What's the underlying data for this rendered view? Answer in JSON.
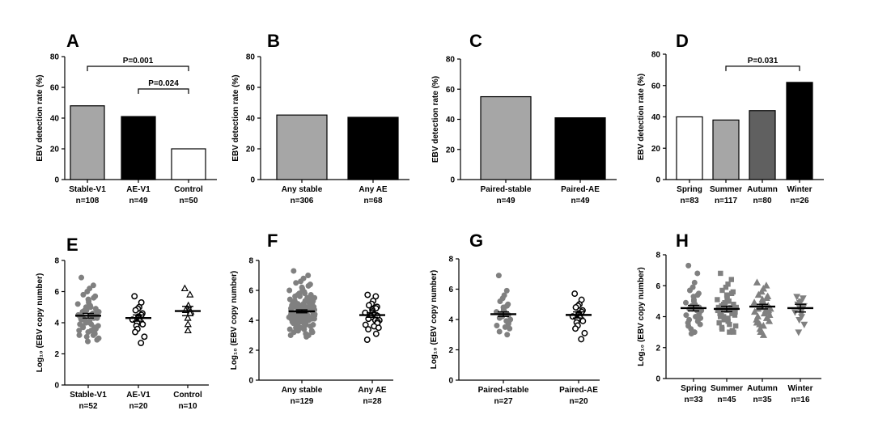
{
  "chart_data": [
    {
      "id": "A",
      "type": "bar",
      "panel_label": "A",
      "ylabel": "EBV detection rate (%)",
      "ylim": [
        0,
        80
      ],
      "yticks": [
        0,
        20,
        40,
        60,
        80
      ],
      "categories": [
        "Stable-V1",
        "AE-V1",
        "Control"
      ],
      "n_labels": [
        "n=108",
        "n=49",
        "n=50"
      ],
      "values": [
        48,
        41,
        20
      ],
      "colors": [
        "#a6a6a6",
        "#000000",
        "#ffffff"
      ],
      "comparisons": [
        {
          "from": 0,
          "to": 2,
          "label": "P=0.001"
        },
        {
          "from": 1,
          "to": 2,
          "label": "P=0.024"
        }
      ]
    },
    {
      "id": "B",
      "type": "bar",
      "panel_label": "B",
      "ylabel": "EBV detection rate (%)",
      "ylim": [
        0,
        80
      ],
      "yticks": [
        0,
        20,
        40,
        60,
        80
      ],
      "categories": [
        "Any stable",
        "Any AE"
      ],
      "n_labels": [
        "n=306",
        "n=68"
      ],
      "values": [
        42,
        40.5
      ],
      "colors": [
        "#a6a6a6",
        "#000000"
      ],
      "comparisons": []
    },
    {
      "id": "C",
      "type": "bar",
      "panel_label": "C",
      "ylabel": "EBV detection rate (%)",
      "ylim": [
        0,
        80
      ],
      "yticks": [
        0,
        20,
        40,
        60,
        80
      ],
      "categories": [
        "Paired-stable",
        "Paired-AE"
      ],
      "n_labels": [
        "n=49",
        "n=49"
      ],
      "values": [
        55,
        41
      ],
      "colors": [
        "#a6a6a6",
        "#000000"
      ],
      "comparisons": []
    },
    {
      "id": "D",
      "type": "bar",
      "panel_label": "D",
      "ylabel": "EBV detection rate (%)",
      "ylim": [
        0,
        80
      ],
      "yticks": [
        0,
        20,
        40,
        60,
        80
      ],
      "categories": [
        "Spring",
        "Summer",
        "Autumn",
        "Winter"
      ],
      "n_labels": [
        "n=83",
        "n=117",
        "n=80",
        "n=26"
      ],
      "values": [
        40,
        38,
        44,
        62
      ],
      "colors": [
        "#ffffff",
        "#a6a6a6",
        "#606060",
        "#000000"
      ],
      "comparisons": [
        {
          "from": 1,
          "to": 3,
          "label": "P=0.031"
        }
      ]
    },
    {
      "id": "E",
      "type": "scatter",
      "panel_label": "E",
      "ylabel": "Log₁₀ (EBV copy number)",
      "ylim": [
        0,
        8
      ],
      "yticks": [
        0,
        2,
        4,
        6,
        8
      ],
      "categories": [
        "Stable-V1",
        "AE-V1",
        "Control"
      ],
      "n_labels": [
        "n=52",
        "n=20",
        "n=10"
      ],
      "markers": [
        "circle-filled",
        "circle-open",
        "triangle-open"
      ],
      "marker_colors": [
        "#808080",
        "#000000",
        "#000000"
      ],
      "means": [
        4.45,
        4.3,
        4.75
      ],
      "sems": [
        0.15,
        0.2,
        0.3
      ],
      "points": [
        [
          6.9,
          6.4,
          6.2,
          6.0,
          5.8,
          5.7,
          5.6,
          5.5,
          5.4,
          5.3,
          5.2,
          5.1,
          5.0,
          5.0,
          4.9,
          4.8,
          4.8,
          4.7,
          4.7,
          4.6,
          4.6,
          4.5,
          4.5,
          4.5,
          4.4,
          4.4,
          4.3,
          4.3,
          4.3,
          4.2,
          4.2,
          4.1,
          4.1,
          4.0,
          4.0,
          3.9,
          3.9,
          3.8,
          3.8,
          3.7,
          3.7,
          3.6,
          3.5,
          3.5,
          3.4,
          3.3,
          3.2,
          3.2,
          3.1,
          3.0,
          2.9,
          2.8
        ],
        [
          5.7,
          5.3,
          5.0,
          4.9,
          4.8,
          4.6,
          4.5,
          4.4,
          4.4,
          4.3,
          4.2,
          4.2,
          4.1,
          4.0,
          3.9,
          3.8,
          3.6,
          3.4,
          3.1,
          2.7
        ],
        [
          6.2,
          5.8,
          5.1,
          4.9,
          4.8,
          4.7,
          4.6,
          4.3,
          3.9,
          3.5
        ]
      ]
    },
    {
      "id": "F",
      "type": "scatter",
      "panel_label": "F",
      "ylabel": "Log₁₀ (EBV copy number)",
      "ylim": [
        0,
        8
      ],
      "yticks": [
        0,
        2,
        4,
        6,
        8
      ],
      "categories": [
        "Any stable",
        "Any AE"
      ],
      "n_labels": [
        "n=129",
        "n=28"
      ],
      "markers": [
        "circle-filled",
        "circle-open"
      ],
      "marker_colors": [
        "#808080",
        "#000000"
      ],
      "means": [
        4.6,
        4.35
      ],
      "sems": [
        0.1,
        0.15
      ],
      "points": [
        [
          7.3,
          7.0,
          6.8,
          6.6,
          6.5,
          6.4,
          6.3,
          6.2,
          6.1,
          6.0,
          6.0,
          5.9,
          5.8,
          5.8,
          5.7,
          5.7,
          5.6,
          5.6,
          5.5,
          5.5,
          5.5,
          5.4,
          5.4,
          5.3,
          5.3,
          5.3,
          5.2,
          5.2,
          5.2,
          5.1,
          5.1,
          5.1,
          5.0,
          5.0,
          5.0,
          5.0,
          4.9,
          4.9,
          4.9,
          4.9,
          4.8,
          4.8,
          4.8,
          4.8,
          4.8,
          4.7,
          4.7,
          4.7,
          4.7,
          4.7,
          4.6,
          4.6,
          4.6,
          4.6,
          4.6,
          4.6,
          4.5,
          4.5,
          4.5,
          4.5,
          4.5,
          4.5,
          4.4,
          4.4,
          4.4,
          4.4,
          4.4,
          4.3,
          4.3,
          4.3,
          4.3,
          4.3,
          4.2,
          4.2,
          4.2,
          4.2,
          4.2,
          4.1,
          4.1,
          4.1,
          4.1,
          4.0,
          4.0,
          4.0,
          4.0,
          3.9,
          3.9,
          3.9,
          3.9,
          3.8,
          3.8,
          3.8,
          3.7,
          3.7,
          3.7,
          3.6,
          3.6,
          3.6,
          3.5,
          3.5,
          3.4,
          3.4,
          3.3,
          3.3,
          3.2,
          3.2,
          3.1,
          3.0,
          3.0,
          2.9,
          4.6,
          4.5,
          4.7,
          4.4,
          4.8,
          4.3,
          4.9,
          4.2,
          5.0,
          4.1,
          4.6,
          4.5,
          4.4,
          4.7,
          4.3,
          4.8,
          4.2,
          4.6,
          4.5
        ],
        [
          5.7,
          5.6,
          5.3,
          5.1,
          5.0,
          4.9,
          4.8,
          4.7,
          4.6,
          4.5,
          4.5,
          4.4,
          4.4,
          4.3,
          4.3,
          4.2,
          4.2,
          4.1,
          4.0,
          4.0,
          3.9,
          3.8,
          3.7,
          3.6,
          3.5,
          3.4,
          3.1,
          2.7
        ]
      ]
    },
    {
      "id": "G",
      "type": "scatter",
      "panel_label": "G",
      "ylabel": "Log₁₀ (EBV copy number)",
      "ylim": [
        0,
        8
      ],
      "yticks": [
        0,
        2,
        4,
        6,
        8
      ],
      "categories": [
        "Paired-stable",
        "Paired-AE"
      ],
      "n_labels": [
        "n=27",
        "n=20"
      ],
      "markers": [
        "circle-filled",
        "circle-open"
      ],
      "marker_colors": [
        "#808080",
        "#000000"
      ],
      "means": [
        4.35,
        4.3
      ],
      "sems": [
        0.15,
        0.2
      ],
      "points": [
        [
          6.9,
          5.9,
          5.6,
          5.4,
          5.2,
          5.0,
          4.9,
          4.8,
          4.7,
          4.6,
          4.5,
          4.5,
          4.4,
          4.4,
          4.3,
          4.3,
          4.2,
          4.1,
          4.0,
          3.9,
          3.8,
          3.7,
          3.6,
          3.5,
          3.4,
          3.2,
          3.0
        ],
        [
          5.7,
          5.3,
          5.0,
          4.9,
          4.8,
          4.6,
          4.5,
          4.4,
          4.4,
          4.3,
          4.2,
          4.2,
          4.1,
          4.0,
          3.9,
          3.8,
          3.6,
          3.4,
          3.1,
          2.7
        ]
      ]
    },
    {
      "id": "H",
      "type": "scatter",
      "panel_label": "H",
      "ylabel": "Log₁₀ (EBV copy number)",
      "ylim": [
        0,
        8
      ],
      "yticks": [
        0,
        2,
        4,
        6,
        8
      ],
      "categories": [
        "Spring",
        "Summer",
        "Autumn",
        "Winter"
      ],
      "n_labels": [
        "n=33",
        "n=45",
        "n=35",
        "n=16"
      ],
      "markers": [
        "circle-filled",
        "square-filled",
        "triangle-filled",
        "triangle-down-filled"
      ],
      "marker_colors": [
        "#808080",
        "#808080",
        "#808080",
        "#808080"
      ],
      "means": [
        4.55,
        4.5,
        4.65,
        4.55
      ],
      "sems": [
        0.18,
        0.17,
        0.15,
        0.25
      ],
      "points": [
        [
          7.3,
          6.8,
          6.2,
          5.9,
          5.7,
          5.5,
          5.4,
          5.3,
          5.1,
          5.0,
          4.9,
          4.8,
          4.7,
          4.7,
          4.6,
          4.6,
          4.5,
          4.5,
          4.4,
          4.4,
          4.3,
          4.2,
          4.1,
          4.0,
          3.9,
          3.8,
          3.7,
          3.6,
          3.5,
          3.4,
          3.2,
          3.0,
          2.9
        ],
        [
          6.8,
          6.4,
          6.1,
          5.9,
          5.7,
          5.6,
          5.5,
          5.4,
          5.3,
          5.2,
          5.1,
          5.0,
          5.0,
          4.9,
          4.8,
          4.8,
          4.7,
          4.7,
          4.6,
          4.6,
          4.5,
          4.5,
          4.4,
          4.4,
          4.3,
          4.3,
          4.2,
          4.2,
          4.1,
          4.0,
          4.0,
          3.9,
          3.8,
          3.8,
          3.7,
          3.6,
          3.5,
          3.4,
          3.3,
          3.2,
          3.1,
          3.0,
          3.0,
          4.6,
          4.4
        ],
        [
          6.2,
          6.0,
          5.8,
          5.6,
          5.4,
          5.3,
          5.2,
          5.1,
          5.0,
          4.9,
          4.9,
          4.8,
          4.8,
          4.7,
          4.7,
          4.6,
          4.6,
          4.5,
          4.5,
          4.4,
          4.4,
          4.3,
          4.3,
          4.2,
          4.1,
          4.0,
          3.9,
          3.8,
          3.7,
          3.6,
          3.5,
          3.4,
          3.2,
          3.0,
          2.8
        ],
        [
          5.3,
          5.2,
          5.0,
          4.9,
          4.8,
          4.7,
          4.6,
          4.5,
          4.5,
          4.4,
          4.3,
          4.2,
          4.0,
          3.8,
          3.5,
          3.0
        ]
      ]
    }
  ]
}
